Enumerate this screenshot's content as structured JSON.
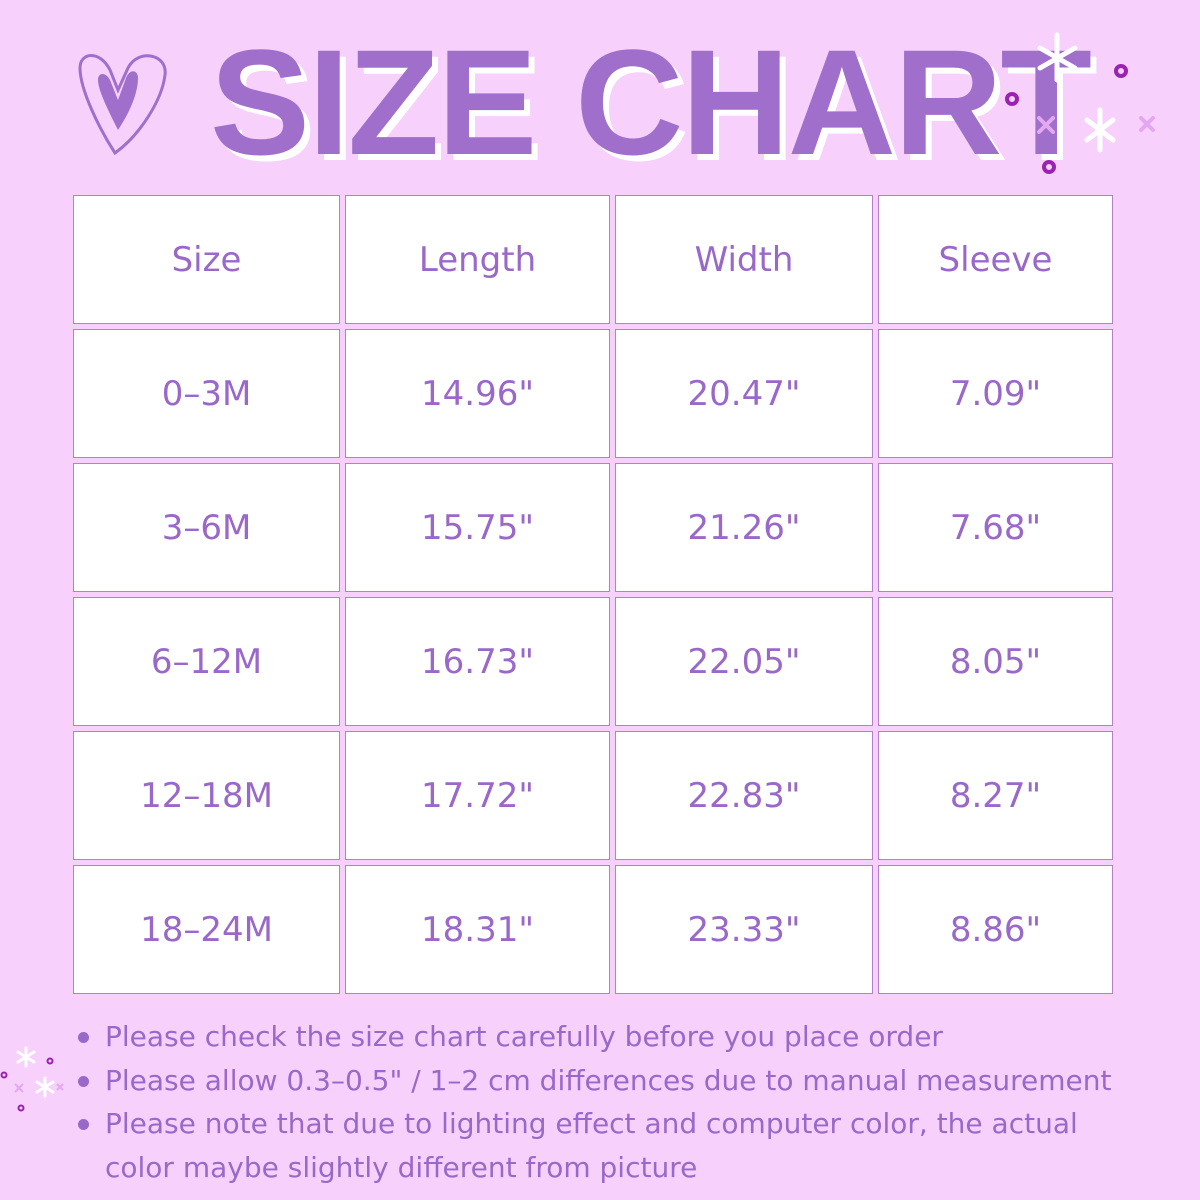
{
  "title": "SIZE CHART",
  "colors": {
    "background": "#f7d1fc",
    "accent": "#a06fcc",
    "cell": "#ffffff"
  },
  "table": {
    "headers": [
      "Size",
      "Length",
      "Width",
      "Sleeve"
    ],
    "rows": [
      [
        "0–3M",
        "14.96\"",
        "20.47\"",
        "7.09\""
      ],
      [
        "3–6M",
        "15.75\"",
        "21.26\"",
        "7.68\""
      ],
      [
        "6–12M",
        "16.73\"",
        "22.05\"",
        "8.05\""
      ],
      [
        "12–18M",
        "17.72\"",
        "22.83\"",
        "8.27\""
      ],
      [
        "18–24M",
        "18.31\"",
        "23.33\"",
        "8.86\""
      ]
    ]
  },
  "notes": [
    "Please check the size chart carefully before you place order",
    "Please allow 0.3–0.5\" / 1–2 cm differences due to manual measurement",
    "Please note that due to lighting effect and computer color, the actual color maybe slightly different from picture"
  ]
}
